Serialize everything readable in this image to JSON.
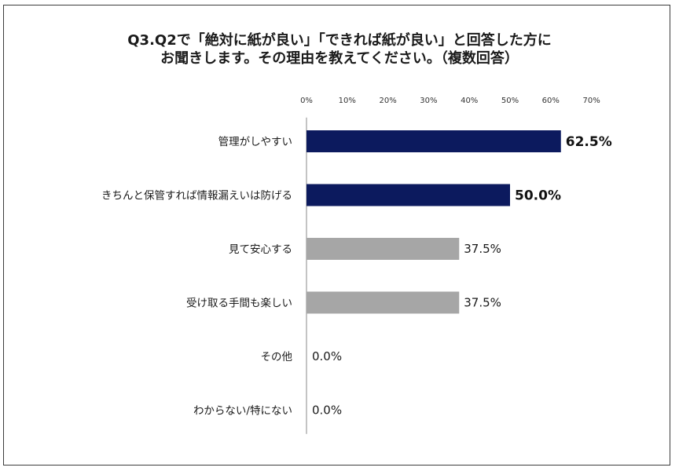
{
  "chart_data": {
    "type": "bar",
    "orientation": "horizontal",
    "title_lines": [
      "Q3.Q2で「絶対に紙が良い」「できれば紙が良い」と回答した方に",
      "お聞きします。その理由を教えてください。（複数回答）"
    ],
    "categories": [
      "管理がしやすい",
      "きちんと保管すれば情報漏えいは防げる",
      "見て安心する",
      "受け取る手間も楽しい",
      "その他",
      "わからない/特にない"
    ],
    "values": [
      62.5,
      50.0,
      37.5,
      37.5,
      0.0,
      0.0
    ],
    "value_labels": [
      "62.5%",
      "50.0%",
      "37.5%",
      "37.5%",
      "0.0%",
      "0.0%"
    ],
    "highlighted": [
      true,
      true,
      false,
      false,
      false,
      false
    ],
    "xlim": [
      0,
      70
    ],
    "xticks": [
      "0%",
      "10%",
      "20%",
      "30%",
      "40%",
      "50%",
      "60%",
      "70%"
    ],
    "axis_position": "top",
    "grid": false,
    "legend": "none",
    "colors": {
      "highlight": "#0c1a5e",
      "normal": "#a6a6a6",
      "axis": "#888888"
    }
  }
}
